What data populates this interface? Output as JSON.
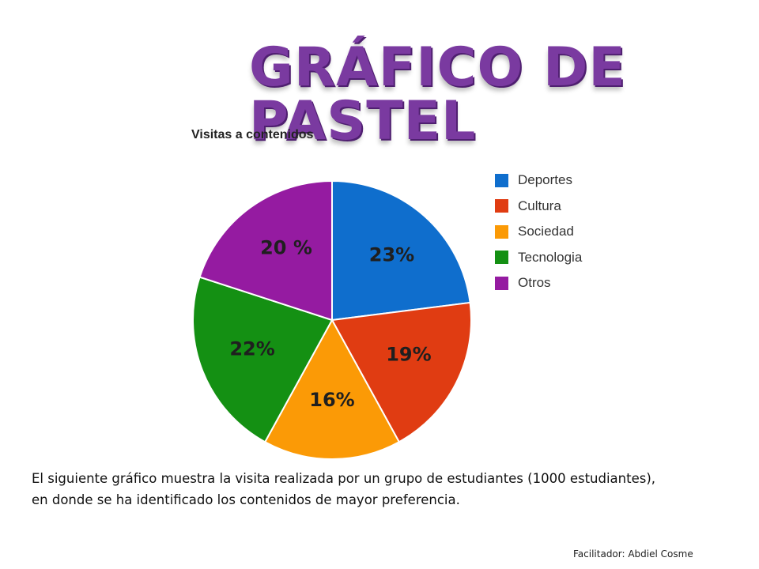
{
  "slide": {
    "title": "GRÁFICO DE PASTEL",
    "caption_line1": "El siguiente gráfico muestra la visita realizada por un grupo de estudiantes (1000 estudiantes),",
    "caption_line2": " en donde se ha identificado los contenidos de mayor preferencia.",
    "credit": "Facilitador: Abdiel Cosme"
  },
  "chart_data": {
    "type": "pie",
    "title": "Visitas a contenidos",
    "legend_position": "right",
    "slices": [
      {
        "name": "Deportes",
        "value": 23,
        "label": "23%",
        "color": "#0f6ecd"
      },
      {
        "name": "Cultura",
        "value": 19,
        "label": "19%",
        "color": "#e03c12"
      },
      {
        "name": "Sociedad",
        "value": 16,
        "label": "16%",
        "color": "#fb9a06"
      },
      {
        "name": "Tecnologia",
        "value": 22,
        "label": "22%",
        "color": "#149013"
      },
      {
        "name": "Otros",
        "value": 20,
        "label": "20 %",
        "color": "#951ba1"
      }
    ]
  }
}
